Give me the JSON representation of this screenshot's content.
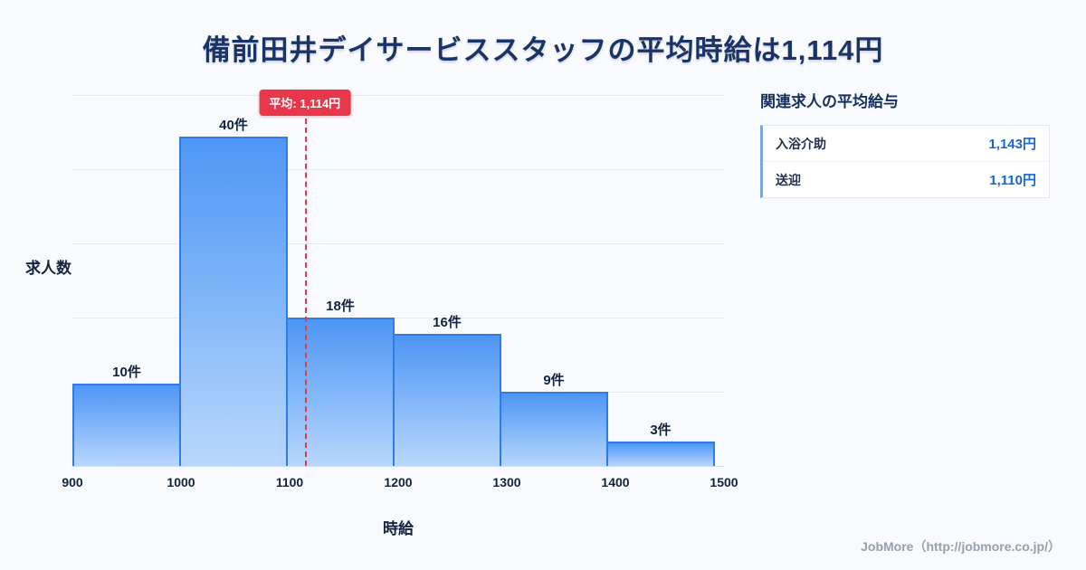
{
  "page": {
    "footer": "JobMore（http://jobmore.co.jp/）"
  },
  "chart_data": {
    "type": "bar",
    "title": "備前田井デイサービススタッフの平均時給は1,114円",
    "xlabel": "時給",
    "ylabel": "求人数",
    "categories": [
      "900-1000",
      "1000-1100",
      "1100-1200",
      "1200-1300",
      "1300-1400",
      "1400-1500"
    ],
    "values": [
      10,
      40,
      18,
      16,
      9,
      3
    ],
    "bar_labels": [
      "10件",
      "40件",
      "18件",
      "16件",
      "9件",
      "3件"
    ],
    "x_ticks": [
      900,
      1000,
      1100,
      1200,
      1300,
      1400,
      1500
    ],
    "ylim": [
      0,
      45
    ],
    "grid": true,
    "legend_position": "none",
    "mean_line": {
      "value": 1114,
      "label": "平均: 1,114円"
    }
  },
  "side_panel": {
    "heading": "関連求人の平均給与",
    "rows": [
      {
        "label": "入浴介助",
        "value": "1,143円"
      },
      {
        "label": "送迎",
        "value": "1,110円"
      }
    ]
  },
  "colors": {
    "background": "#f8fafd",
    "title_text": "#1a3467",
    "bar_fill_top": "#4e96f5",
    "bar_fill_bottom": "#b9d7fb",
    "bar_border": "#2e7ce4",
    "mean_line": "#e8374a",
    "value_text": "#1565d8",
    "footer_text": "#98a0ac"
  }
}
